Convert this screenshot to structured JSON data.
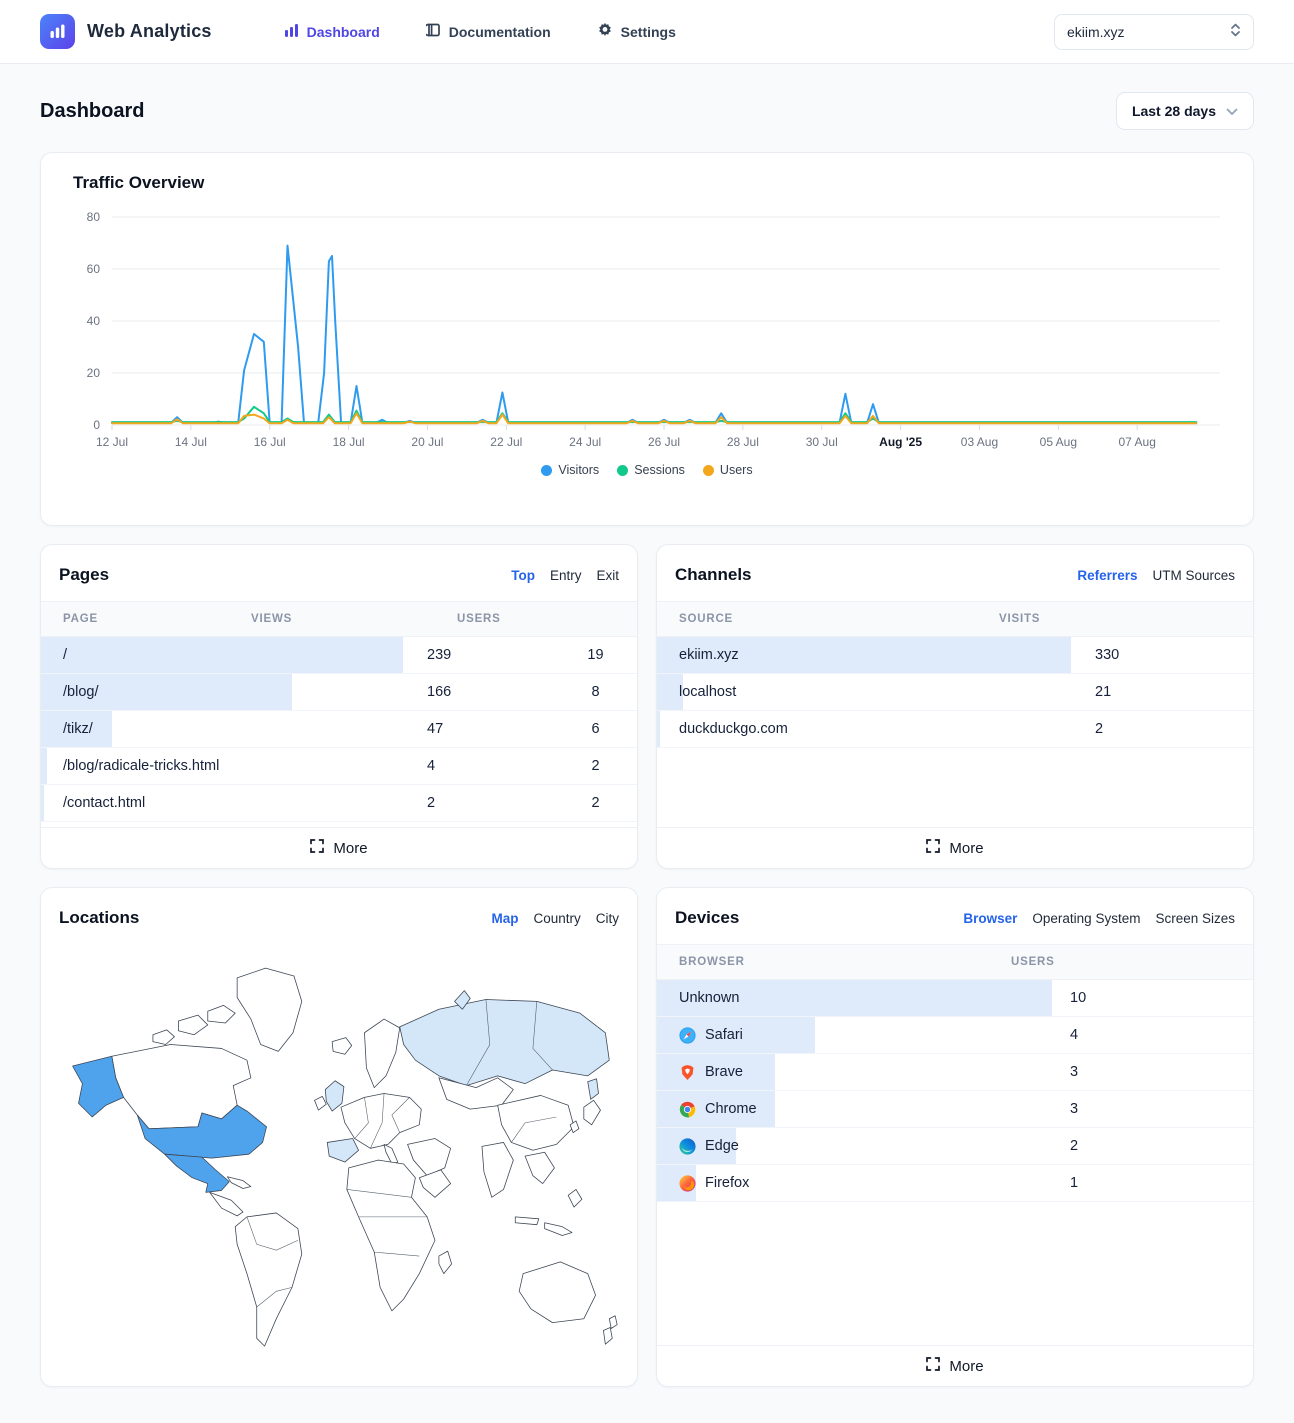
{
  "header": {
    "brand": "Web Analytics",
    "nav": [
      {
        "label": "Dashboard",
        "icon": "bar-chart-icon",
        "active": true
      },
      {
        "label": "Documentation",
        "icon": "book-icon",
        "active": false
      },
      {
        "label": "Settings",
        "icon": "gear-icon",
        "active": false
      }
    ],
    "site_selector": {
      "value": "ekiim.xyz"
    }
  },
  "page": {
    "title": "Dashboard",
    "date_range": "Last 28 days"
  },
  "traffic": {
    "title": "Traffic Overview"
  },
  "chart_data": {
    "type": "line",
    "title": "Traffic Overview",
    "x_axis": {
      "unit": "days since 12 Jul 2025",
      "range": [
        0,
        28.1
      ],
      "ticks": [
        {
          "x": 0,
          "label": "12 Jul"
        },
        {
          "x": 2,
          "label": "14 Jul"
        },
        {
          "x": 4,
          "label": "16 Jul"
        },
        {
          "x": 6,
          "label": "18 Jul"
        },
        {
          "x": 8,
          "label": "20 Jul"
        },
        {
          "x": 10,
          "label": "22 Jul"
        },
        {
          "x": 12,
          "label": "24 Jul"
        },
        {
          "x": 14,
          "label": "26 Jul"
        },
        {
          "x": 16,
          "label": "28 Jul"
        },
        {
          "x": 18,
          "label": "30 Jul"
        },
        {
          "x": 20,
          "label": "Aug '25",
          "bold": true
        },
        {
          "x": 22,
          "label": "03 Aug"
        },
        {
          "x": 24,
          "label": "05 Aug"
        },
        {
          "x": 26,
          "label": "07 Aug"
        }
      ]
    },
    "y_axis": {
      "range": [
        0,
        80
      ],
      "ticks": [
        0,
        20,
        40,
        60,
        80
      ]
    },
    "legend_position": "bottom",
    "series": [
      {
        "name": "Visitors",
        "color": "#2E9BF0",
        "baseline": 0.8,
        "end": 27.5,
        "points": [
          [
            1.65,
            3
          ],
          [
            2.7,
            1.3
          ],
          [
            3.35,
            21
          ],
          [
            3.6,
            35
          ],
          [
            3.85,
            32
          ],
          [
            4.45,
            69
          ],
          [
            4.72,
            30
          ],
          [
            5.38,
            20
          ],
          [
            5.5,
            63
          ],
          [
            5.58,
            65
          ],
          [
            5.66,
            40
          ],
          [
            6.2,
            15
          ],
          [
            6.85,
            2
          ],
          [
            7.55,
            1.6
          ],
          [
            9.4,
            2
          ],
          [
            9.9,
            12.5
          ],
          [
            13.2,
            2
          ],
          [
            14.0,
            2
          ],
          [
            14.65,
            2
          ],
          [
            15.45,
            4.5
          ],
          [
            18.6,
            12
          ],
          [
            19.3,
            8
          ]
        ]
      },
      {
        "name": "Sessions",
        "color": "#12C98C",
        "baseline": 1.1,
        "end": 27.5,
        "points": [
          [
            1.65,
            1.6
          ],
          [
            3.35,
            2.5
          ],
          [
            3.6,
            7
          ],
          [
            3.85,
            4.5
          ],
          [
            4.45,
            2.5
          ],
          [
            5.5,
            4
          ],
          [
            6.2,
            5.5
          ],
          [
            9.9,
            4.5
          ],
          [
            15.45,
            1.6
          ],
          [
            18.6,
            4.5
          ],
          [
            19.3,
            2.5
          ]
        ]
      },
      {
        "name": "Users",
        "color": "#F2A71C",
        "baseline": 0.65,
        "end": 27.5,
        "points": [
          [
            1.65,
            2.2
          ],
          [
            3.35,
            3.5
          ],
          [
            3.6,
            4
          ],
          [
            3.85,
            2.5
          ],
          [
            4.45,
            2
          ],
          [
            5.5,
            3
          ],
          [
            6.2,
            4.5
          ],
          [
            7.55,
            1.3
          ],
          [
            9.4,
            1.6
          ],
          [
            9.9,
            4
          ],
          [
            13.2,
            1.6
          ],
          [
            14.0,
            1.6
          ],
          [
            14.65,
            1.6
          ],
          [
            15.45,
            3
          ],
          [
            18.6,
            3.5
          ],
          [
            19.3,
            3.5
          ]
        ]
      }
    ]
  },
  "pages_card": {
    "title": "Pages",
    "tabs": [
      {
        "label": "Top",
        "active": true
      },
      {
        "label": "Entry",
        "active": false
      },
      {
        "label": "Exit",
        "active": false
      }
    ],
    "columns": [
      "PAGE",
      "VIEWS",
      "USERS"
    ],
    "rows": [
      {
        "page": "/",
        "views": 239,
        "users": 19
      },
      {
        "page": "/blog/",
        "views": 166,
        "users": 8
      },
      {
        "page": "/tikz/",
        "views": 47,
        "users": 6
      },
      {
        "page": "/blog/radicale-tricks.html",
        "views": 4,
        "users": 2
      },
      {
        "page": "/contact.html",
        "views": 2,
        "users": 2
      }
    ],
    "more_label": "More"
  },
  "channels_card": {
    "title": "Channels",
    "tabs": [
      {
        "label": "Referrers",
        "active": true
      },
      {
        "label": "UTM Sources",
        "active": false
      }
    ],
    "columns": [
      "SOURCE",
      "VISITS"
    ],
    "rows": [
      {
        "source": "ekiim.xyz",
        "visits": 330
      },
      {
        "source": "localhost",
        "visits": 21
      },
      {
        "source": "duckduckgo.com",
        "visits": 2
      }
    ],
    "more_label": "More"
  },
  "locations_card": {
    "title": "Locations",
    "tabs": [
      {
        "label": "Map",
        "active": true
      },
      {
        "label": "Country",
        "active": false
      },
      {
        "label": "City",
        "active": false
      }
    ],
    "map": {
      "highlight_strong": "#4fa3ec",
      "highlight_light": "#d3e7f9",
      "highlighted_strong_countries": [
        "United States",
        "Mexico"
      ],
      "highlighted_light_countries": [
        "Russia",
        "United Kingdom",
        "Spain"
      ]
    }
  },
  "devices_card": {
    "title": "Devices",
    "tabs": [
      {
        "label": "Browser",
        "active": true
      },
      {
        "label": "Operating System",
        "active": false
      },
      {
        "label": "Screen Sizes",
        "active": false
      }
    ],
    "columns": [
      "BROWSER",
      "USERS"
    ],
    "rows": [
      {
        "browser": "Unknown",
        "users": 10,
        "icon": null
      },
      {
        "browser": "Safari",
        "users": 4,
        "icon": "safari-icon"
      },
      {
        "browser": "Brave",
        "users": 3,
        "icon": "brave-icon"
      },
      {
        "browser": "Chrome",
        "users": 3,
        "icon": "chrome-icon"
      },
      {
        "browser": "Edge",
        "users": 2,
        "icon": "edge-icon"
      },
      {
        "browser": "Firefox",
        "users": 1,
        "icon": "firefox-icon"
      }
    ],
    "more_label": "More"
  },
  "colors": {
    "accent_blue": "#2563eb",
    "nav_active": "#4f46e5",
    "row_bar_fill": "#dfeafb",
    "visitors": "#2E9BF0",
    "sessions": "#12C98C",
    "users": "#F2A71C"
  }
}
